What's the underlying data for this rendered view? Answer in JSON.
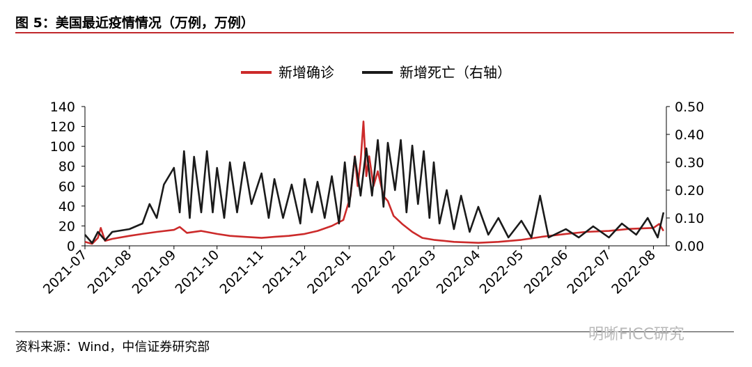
{
  "page": {
    "title": "图 5：美国最近疫情情况（万例，万例）",
    "source": "资料来源：Wind，中信证券研究部",
    "watermark": "明晰FICC研究"
  },
  "chart_data": {
    "type": "line",
    "title": "",
    "xlabel": "",
    "ylabel": "",
    "x_range": [
      "2021-07-01",
      "2022-08-10"
    ],
    "x_ticks": [
      "2021-07",
      "2021-08",
      "2021-09",
      "2021-10",
      "2021-11",
      "2021-12",
      "2022-01",
      "2022-02",
      "2022-03",
      "2022-04",
      "2022-05",
      "2022-06",
      "2022-07",
      "2022-08"
    ],
    "y_left": {
      "min": 0,
      "max": 140,
      "ticks": [
        "0",
        "20",
        "40",
        "60",
        "80",
        "100",
        "120",
        "140"
      ]
    },
    "y_right": {
      "min": 0,
      "max": 0.5,
      "ticks": [
        "0.00",
        "0.10",
        "0.20",
        "0.30",
        "0.40",
        "0.50"
      ]
    },
    "legend_position": "top-center",
    "grid": false,
    "series": [
      {
        "name": "新增确诊",
        "axis": "left",
        "color": "#cc2a2a",
        "points": [
          [
            "2021-07-01",
            4
          ],
          [
            "2021-07-06",
            2
          ],
          [
            "2021-07-10",
            8
          ],
          [
            "2021-07-12",
            18
          ],
          [
            "2021-07-15",
            5
          ],
          [
            "2021-07-20",
            7
          ],
          [
            "2021-08-01",
            10
          ],
          [
            "2021-08-10",
            12
          ],
          [
            "2021-08-20",
            14
          ],
          [
            "2021-09-01",
            16
          ],
          [
            "2021-09-05",
            19
          ],
          [
            "2021-09-10",
            13
          ],
          [
            "2021-09-20",
            15
          ],
          [
            "2021-10-01",
            12
          ],
          [
            "2021-10-10",
            10
          ],
          [
            "2021-10-20",
            9
          ],
          [
            "2021-11-01",
            8
          ],
          [
            "2021-11-10",
            9
          ],
          [
            "2021-11-20",
            10
          ],
          [
            "2021-12-01",
            12
          ],
          [
            "2021-12-10",
            15
          ],
          [
            "2021-12-20",
            20
          ],
          [
            "2021-12-28",
            26
          ],
          [
            "2022-01-02",
            50
          ],
          [
            "2022-01-05",
            90
          ],
          [
            "2022-01-07",
            60
          ],
          [
            "2022-01-09",
            85
          ],
          [
            "2022-01-11",
            125
          ],
          [
            "2022-01-13",
            70
          ],
          [
            "2022-01-15",
            90
          ],
          [
            "2022-01-18",
            60
          ],
          [
            "2022-01-21",
            75
          ],
          [
            "2022-01-25",
            50
          ],
          [
            "2022-01-28",
            45
          ],
          [
            "2022-02-01",
            30
          ],
          [
            "2022-02-07",
            22
          ],
          [
            "2022-02-14",
            14
          ],
          [
            "2022-02-21",
            8
          ],
          [
            "2022-03-01",
            6
          ],
          [
            "2022-03-15",
            4
          ],
          [
            "2022-04-01",
            3
          ],
          [
            "2022-04-15",
            4
          ],
          [
            "2022-05-01",
            6
          ],
          [
            "2022-05-15",
            9
          ],
          [
            "2022-06-01",
            12
          ],
          [
            "2022-06-15",
            14
          ],
          [
            "2022-07-01",
            15
          ],
          [
            "2022-07-15",
            17
          ],
          [
            "2022-08-01",
            18
          ],
          [
            "2022-08-05",
            22
          ],
          [
            "2022-08-08",
            15
          ]
        ]
      },
      {
        "name": "新增死亡（右轴）",
        "axis": "right",
        "color": "#1a1a1a",
        "points": [
          [
            "2021-07-01",
            0.04
          ],
          [
            "2021-07-06",
            0.01
          ],
          [
            "2021-07-10",
            0.05
          ],
          [
            "2021-07-15",
            0.02
          ],
          [
            "2021-07-20",
            0.05
          ],
          [
            "2021-08-01",
            0.06
          ],
          [
            "2021-08-10",
            0.08
          ],
          [
            "2021-08-15",
            0.15
          ],
          [
            "2021-08-20",
            0.1
          ],
          [
            "2021-08-25",
            0.22
          ],
          [
            "2021-09-01",
            0.28
          ],
          [
            "2021-09-05",
            0.12
          ],
          [
            "2021-09-08",
            0.34
          ],
          [
            "2021-09-12",
            0.1
          ],
          [
            "2021-09-15",
            0.32
          ],
          [
            "2021-09-20",
            0.12
          ],
          [
            "2021-09-24",
            0.34
          ],
          [
            "2021-09-28",
            0.12
          ],
          [
            "2021-10-01",
            0.28
          ],
          [
            "2021-10-06",
            0.1
          ],
          [
            "2021-10-10",
            0.3
          ],
          [
            "2021-10-15",
            0.12
          ],
          [
            "2021-10-20",
            0.3
          ],
          [
            "2021-10-25",
            0.15
          ],
          [
            "2021-11-01",
            0.26
          ],
          [
            "2021-11-06",
            0.1
          ],
          [
            "2021-11-10",
            0.24
          ],
          [
            "2021-11-16",
            0.1
          ],
          [
            "2021-11-22",
            0.22
          ],
          [
            "2021-11-28",
            0.08
          ],
          [
            "2021-12-01",
            0.24
          ],
          [
            "2021-12-06",
            0.12
          ],
          [
            "2021-12-10",
            0.23
          ],
          [
            "2021-12-15",
            0.1
          ],
          [
            "2021-12-20",
            0.25
          ],
          [
            "2021-12-25",
            0.08
          ],
          [
            "2021-12-29",
            0.3
          ],
          [
            "2022-01-01",
            0.14
          ],
          [
            "2022-01-05",
            0.32
          ],
          [
            "2022-01-09",
            0.18
          ],
          [
            "2022-01-13",
            0.35
          ],
          [
            "2022-01-17",
            0.18
          ],
          [
            "2022-01-21",
            0.38
          ],
          [
            "2022-01-25",
            0.14
          ],
          [
            "2022-01-28",
            0.37
          ],
          [
            "2022-02-02",
            0.2
          ],
          [
            "2022-02-06",
            0.38
          ],
          [
            "2022-02-10",
            0.12
          ],
          [
            "2022-02-14",
            0.36
          ],
          [
            "2022-02-18",
            0.15
          ],
          [
            "2022-02-22",
            0.34
          ],
          [
            "2022-02-26",
            0.1
          ],
          [
            "2022-03-01",
            0.3
          ],
          [
            "2022-03-05",
            0.08
          ],
          [
            "2022-03-10",
            0.2
          ],
          [
            "2022-03-15",
            0.06
          ],
          [
            "2022-03-20",
            0.18
          ],
          [
            "2022-03-26",
            0.05
          ],
          [
            "2022-04-01",
            0.14
          ],
          [
            "2022-04-08",
            0.04
          ],
          [
            "2022-04-15",
            0.1
          ],
          [
            "2022-04-22",
            0.03
          ],
          [
            "2022-05-01",
            0.09
          ],
          [
            "2022-05-08",
            0.03
          ],
          [
            "2022-05-14",
            0.18
          ],
          [
            "2022-05-20",
            0.03
          ],
          [
            "2022-06-01",
            0.06
          ],
          [
            "2022-06-10",
            0.03
          ],
          [
            "2022-06-20",
            0.07
          ],
          [
            "2022-07-01",
            0.03
          ],
          [
            "2022-07-10",
            0.08
          ],
          [
            "2022-07-20",
            0.04
          ],
          [
            "2022-07-28",
            0.1
          ],
          [
            "2022-08-04",
            0.03
          ],
          [
            "2022-08-08",
            0.12
          ]
        ]
      }
    ]
  }
}
